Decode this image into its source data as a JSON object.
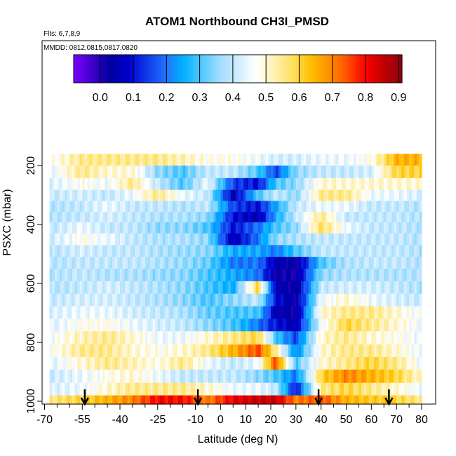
{
  "chart_data": {
    "type": "heatmap",
    "title": "ATOM1 Northbound CH3I_PMSD",
    "flights_note": "Flts: 6,7,8,9",
    "dates_note": "MMDD: 0812,0815,0817,0820",
    "xlabel": "Latitude (deg N)",
    "ylabel": "PSXC (mbar)",
    "xlim": [
      -70,
      80
    ],
    "ylim": [
      1000,
      100
    ],
    "x_ticks": [
      -70,
      -55,
      -40,
      -25,
      -10,
      0,
      10,
      20,
      30,
      40,
      50,
      60,
      70,
      80
    ],
    "x_minor_ticks": [
      -65,
      -60,
      -50,
      -45,
      -35,
      -30,
      -20,
      -15,
      -5,
      5,
      15,
      25,
      35,
      45,
      55,
      65,
      75
    ],
    "y_ticks": [
      200,
      400,
      600,
      800,
      1000
    ],
    "colorbar": {
      "min": -0.08,
      "max": 0.91,
      "ticks": [
        0.0,
        0.1,
        0.2,
        0.3,
        0.4,
        0.5,
        0.6,
        0.7,
        0.8,
        0.9
      ],
      "tick_labels": [
        "0.0",
        "0.1",
        "0.2",
        "0.3",
        "0.4",
        "0.5",
        "0.6",
        "0.7",
        "0.8",
        "0.9"
      ],
      "colors": [
        "#7a00ff",
        "#4000c8",
        "#0000a0",
        "#0000cc",
        "#1038e8",
        "#2070ff",
        "#00b0ff",
        "#50c8ff",
        "#a0dcff",
        "#d0ecff",
        "#ffffff",
        "#fff0b0",
        "#ffe060",
        "#ffc000",
        "#ff9000",
        "#ff5000",
        "#ff0000",
        "#c00000",
        "#900010"
      ]
    },
    "pressure_levels": [
      180,
      220,
      265,
      300,
      340,
      375,
      410,
      450,
      490,
      530,
      570,
      615,
      655,
      700,
      740,
      785,
      830,
      870,
      915,
      960,
      1000
    ],
    "lat_knots": [
      -70,
      -55,
      -45,
      -35,
      -25,
      -15,
      -5,
      5,
      15,
      22,
      30,
      40,
      50,
      60,
      70,
      80
    ],
    "rows": [
      [
        0.45,
        0.55,
        0.55,
        0.55,
        0.55,
        0.52,
        0.48,
        0.48,
        0.45,
        0.42,
        0.42,
        0.45,
        0.45,
        0.48,
        0.65,
        0.65
      ],
      [
        0.42,
        0.55,
        0.5,
        0.5,
        0.35,
        0.3,
        0.4,
        0.4,
        0.3,
        0.15,
        0.35,
        0.4,
        0.4,
        0.42,
        0.6,
        0.6
      ],
      [
        0.42,
        0.48,
        0.45,
        0.55,
        0.4,
        0.3,
        0.45,
        0.15,
        0.1,
        0.3,
        0.35,
        0.5,
        0.5,
        0.5,
        0.5,
        0.5
      ],
      [
        0.4,
        0.42,
        0.4,
        0.45,
        0.55,
        0.45,
        0.4,
        0.05,
        0.3,
        0.4,
        0.35,
        0.55,
        0.55,
        0.45,
        0.45,
        0.42
      ],
      [
        0.38,
        0.4,
        0.45,
        0.4,
        0.4,
        0.38,
        0.4,
        0.15,
        0.1,
        0.25,
        0.4,
        0.45,
        0.45,
        0.4,
        0.4,
        0.38
      ],
      [
        0.38,
        0.4,
        0.42,
        0.4,
        0.38,
        0.38,
        0.35,
        0.1,
        0.05,
        0.25,
        0.4,
        0.55,
        0.4,
        0.4,
        0.4,
        0.38
      ],
      [
        0.38,
        0.45,
        0.4,
        0.4,
        0.35,
        0.35,
        0.3,
        0.1,
        0.2,
        0.3,
        0.35,
        0.58,
        0.45,
        0.4,
        0.4,
        0.38
      ],
      [
        0.4,
        0.48,
        0.45,
        0.4,
        0.38,
        0.38,
        0.35,
        0.05,
        0.2,
        0.35,
        0.38,
        0.4,
        0.4,
        0.4,
        0.4,
        0.38
      ],
      [
        0.38,
        0.42,
        0.4,
        0.4,
        0.38,
        0.36,
        0.35,
        0.25,
        0.25,
        0.2,
        0.3,
        0.4,
        0.4,
        0.4,
        0.4,
        0.38
      ],
      [
        0.38,
        0.4,
        0.4,
        0.4,
        0.38,
        0.36,
        0.32,
        0.2,
        0.2,
        0.05,
        0.02,
        0.3,
        0.38,
        0.4,
        0.4,
        0.38
      ],
      [
        0.38,
        0.4,
        0.38,
        0.38,
        0.36,
        0.35,
        0.3,
        0.25,
        0.2,
        0.02,
        0.02,
        0.35,
        0.38,
        0.38,
        0.38,
        0.38
      ],
      [
        0.38,
        0.4,
        0.42,
        0.4,
        0.38,
        0.35,
        0.3,
        0.25,
        0.6,
        0.05,
        0.02,
        0.4,
        0.42,
        0.42,
        0.4,
        0.38
      ],
      [
        0.4,
        0.42,
        0.42,
        0.4,
        0.38,
        0.35,
        0.3,
        0.35,
        0.4,
        0.1,
        0.02,
        0.45,
        0.5,
        0.45,
        0.42,
        0.4
      ],
      [
        0.42,
        0.45,
        0.45,
        0.42,
        0.4,
        0.38,
        0.32,
        0.3,
        0.3,
        0.05,
        0.02,
        0.5,
        0.55,
        0.55,
        0.5,
        0.45
      ],
      [
        0.42,
        0.48,
        0.48,
        0.45,
        0.42,
        0.4,
        0.35,
        0.3,
        0.2,
        0.1,
        0.05,
        0.45,
        0.6,
        0.55,
        0.5,
        0.45
      ],
      [
        0.45,
        0.52,
        0.55,
        0.5,
        0.45,
        0.45,
        0.5,
        0.55,
        0.6,
        0.3,
        0.15,
        0.5,
        0.55,
        0.5,
        0.48,
        0.45
      ],
      [
        0.45,
        0.55,
        0.55,
        0.5,
        0.48,
        0.5,
        0.55,
        0.65,
        0.75,
        0.55,
        0.2,
        0.5,
        0.55,
        0.55,
        0.5,
        0.45
      ],
      [
        0.42,
        0.5,
        0.55,
        0.52,
        0.48,
        0.55,
        0.45,
        0.4,
        0.45,
        0.75,
        0.3,
        0.5,
        0.55,
        0.6,
        0.55,
        0.45
      ],
      [
        0.4,
        0.45,
        0.48,
        0.5,
        0.45,
        0.4,
        0.4,
        0.4,
        0.35,
        0.3,
        0.2,
        0.6,
        0.7,
        0.65,
        0.6,
        0.5
      ],
      [
        0.42,
        0.45,
        0.5,
        0.55,
        0.55,
        0.55,
        0.5,
        0.45,
        0.45,
        0.4,
        0.1,
        0.55,
        0.6,
        0.55,
        0.5,
        0.45
      ],
      [
        0.55,
        0.6,
        0.65,
        0.7,
        0.8,
        0.8,
        0.7,
        0.82,
        0.85,
        0.85,
        0.7,
        0.75,
        0.65,
        0.62,
        0.6,
        0.55
      ]
    ],
    "flight_turn_arrows_lat": [
      -54,
      -9,
      39,
      67
    ]
  }
}
